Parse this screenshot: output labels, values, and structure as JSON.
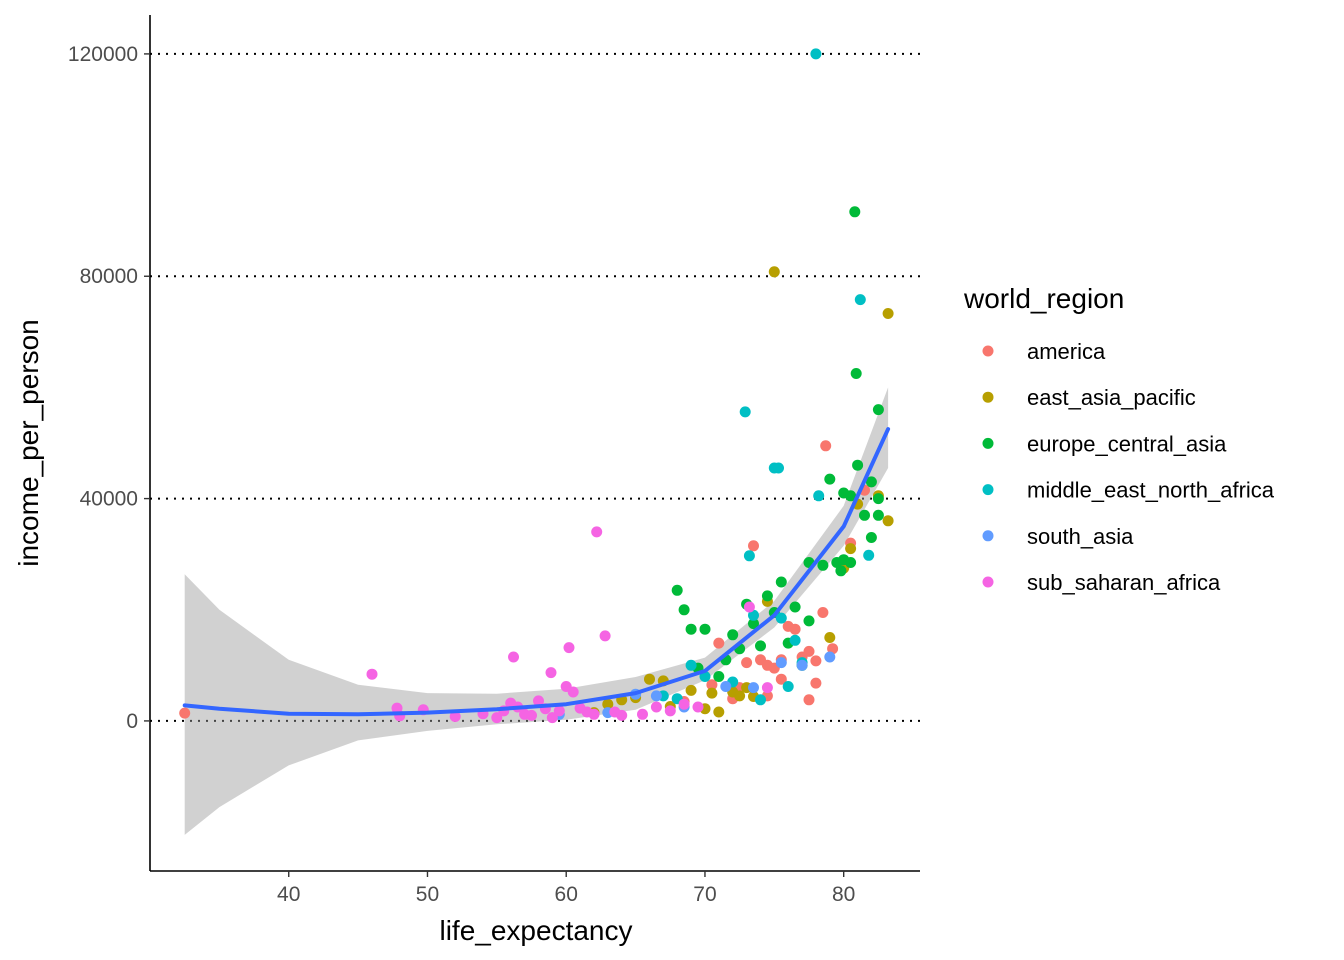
{
  "chart_data": {
    "type": "scatter",
    "title": "",
    "xlabel": "life_expectancy",
    "ylabel": "income_per_person",
    "xlim": [
      30,
      85.5
    ],
    "ylim": [
      -27000,
      127000
    ],
    "x_ticks": [
      40,
      50,
      60,
      70,
      80
    ],
    "y_ticks": [
      0,
      40000,
      80000,
      120000
    ],
    "y_tick_labels": [
      "0",
      "40000",
      "80000",
      "120000"
    ],
    "grid": "horizontal dotted major lines",
    "legend": {
      "title": "world_region",
      "placement": "right"
    },
    "series": [
      {
        "name": "america",
        "color": "#F8766D",
        "points": [
          [
            32.5,
            1400
          ],
          [
            68.5,
            3500
          ],
          [
            70.5,
            6500
          ],
          [
            71.0,
            14000
          ],
          [
            72.0,
            4000
          ],
          [
            72.5,
            6000
          ],
          [
            73.0,
            10500
          ],
          [
            73.5,
            31500
          ],
          [
            74.0,
            11000
          ],
          [
            74.5,
            10000
          ],
          [
            74.5,
            4500
          ],
          [
            75.0,
            9500
          ],
          [
            75.5,
            7500
          ],
          [
            75.5,
            11000
          ],
          [
            76.0,
            17000
          ],
          [
            76.5,
            16500
          ],
          [
            77.0,
            11500
          ],
          [
            77.5,
            3800
          ],
          [
            77.5,
            12500
          ],
          [
            78.0,
            6800
          ],
          [
            78.0,
            10800
          ],
          [
            78.5,
            19500
          ],
          [
            78.7,
            49500
          ],
          [
            79.2,
            13000
          ],
          [
            80.5,
            32000
          ],
          [
            81.5,
            41500
          ]
        ]
      },
      {
        "name": "east_asia_pacific",
        "color": "#B79F00",
        "points": [
          [
            62.0,
            1500
          ],
          [
            63.0,
            3000
          ],
          [
            64.0,
            3800
          ],
          [
            65.0,
            4200
          ],
          [
            66.0,
            7500
          ],
          [
            67.0,
            7200
          ],
          [
            67.5,
            2600
          ],
          [
            69.0,
            5500
          ],
          [
            70.0,
            2200
          ],
          [
            70.5,
            5000
          ],
          [
            71.0,
            1600
          ],
          [
            72.0,
            5200
          ],
          [
            72.5,
            4500
          ],
          [
            73.0,
            6000
          ],
          [
            73.5,
            4400
          ],
          [
            74.5,
            21500
          ],
          [
            75.0,
            80800
          ],
          [
            79.0,
            15000
          ],
          [
            80.0,
            27500
          ],
          [
            80.5,
            31000
          ],
          [
            81.0,
            39000
          ],
          [
            82.5,
            40500
          ],
          [
            83.2,
            73300
          ],
          [
            83.2,
            36000
          ]
        ]
      },
      {
        "name": "europe_central_asia",
        "color": "#00BA38",
        "points": [
          [
            68.0,
            23500
          ],
          [
            68.5,
            20000
          ],
          [
            69.0,
            16500
          ],
          [
            69.5,
            9500
          ],
          [
            70.0,
            16500
          ],
          [
            71.0,
            8000
          ],
          [
            71.5,
            11000
          ],
          [
            72.0,
            15500
          ],
          [
            72.5,
            13000
          ],
          [
            73.0,
            21000
          ],
          [
            73.5,
            17500
          ],
          [
            74.0,
            13500
          ],
          [
            74.5,
            22500
          ],
          [
            75.0,
            19500
          ],
          [
            75.5,
            25000
          ],
          [
            76.0,
            14000
          ],
          [
            76.5,
            20500
          ],
          [
            77.0,
            10000
          ],
          [
            77.5,
            18000
          ],
          [
            77.5,
            28500
          ],
          [
            78.5,
            28000
          ],
          [
            79.0,
            43500
          ],
          [
            79.5,
            28500
          ],
          [
            80.0,
            29000
          ],
          [
            80.0,
            41000
          ],
          [
            80.5,
            40500
          ],
          [
            80.8,
            91600
          ],
          [
            80.9,
            62500
          ],
          [
            81.0,
            46000
          ],
          [
            81.5,
            37000
          ],
          [
            82.0,
            33000
          ],
          [
            82.0,
            43000
          ],
          [
            82.5,
            37000
          ],
          [
            82.5,
            40000
          ],
          [
            82.5,
            56000
          ],
          [
            80.5,
            28500
          ],
          [
            79.8,
            27000
          ]
        ]
      },
      {
        "name": "middle_east_north_africa",
        "color": "#00BFC4",
        "points": [
          [
            67.0,
            4500
          ],
          [
            68.0,
            4000
          ],
          [
            69.0,
            10000
          ],
          [
            70.0,
            8000
          ],
          [
            72.0,
            7000
          ],
          [
            72.9,
            55600
          ],
          [
            73.2,
            29700
          ],
          [
            73.5,
            19000
          ],
          [
            74.0,
            3800
          ],
          [
            75.0,
            45500
          ],
          [
            75.3,
            45500
          ],
          [
            75.5,
            18500
          ],
          [
            76.0,
            6200
          ],
          [
            76.5,
            14500
          ],
          [
            77.0,
            10500
          ],
          [
            78.0,
            120000
          ],
          [
            78.2,
            40500
          ],
          [
            81.2,
            75800
          ],
          [
            81.8,
            29800
          ]
        ]
      },
      {
        "name": "south_asia",
        "color": "#619CFF",
        "points": [
          [
            59.5,
            1200
          ],
          [
            63.0,
            1500
          ],
          [
            65.0,
            4800
          ],
          [
            66.5,
            4500
          ],
          [
            68.5,
            2500
          ],
          [
            71.5,
            6200
          ],
          [
            73.5,
            6000
          ],
          [
            75.5,
            10500
          ],
          [
            77.0,
            10000
          ],
          [
            79.0,
            11500
          ]
        ]
      },
      {
        "name": "sub_saharan_africa",
        "color": "#F564E3",
        "points": [
          [
            46.0,
            8400
          ],
          [
            47.8,
            2300
          ],
          [
            48.0,
            900
          ],
          [
            49.7,
            2000
          ],
          [
            52.0,
            800
          ],
          [
            54.0,
            1300
          ],
          [
            55.0,
            600
          ],
          [
            55.5,
            1800
          ],
          [
            56.0,
            3200
          ],
          [
            56.2,
            11500
          ],
          [
            56.5,
            2500
          ],
          [
            57.0,
            1200
          ],
          [
            57.5,
            1000
          ],
          [
            58.0,
            3600
          ],
          [
            58.5,
            2200
          ],
          [
            58.9,
            8700
          ],
          [
            59.0,
            600
          ],
          [
            59.5,
            1800
          ],
          [
            60.0,
            6200
          ],
          [
            60.2,
            13200
          ],
          [
            60.5,
            5200
          ],
          [
            61.0,
            2300
          ],
          [
            61.5,
            1600
          ],
          [
            62.0,
            1200
          ],
          [
            62.2,
            34000
          ],
          [
            62.8,
            15300
          ],
          [
            63.5,
            1600
          ],
          [
            64.0,
            1000
          ],
          [
            65.5,
            1200
          ],
          [
            66.5,
            2500
          ],
          [
            67.5,
            1800
          ],
          [
            68.5,
            3000
          ],
          [
            69.5,
            2500
          ],
          [
            73.2,
            20500
          ],
          [
            74.5,
            6000
          ]
        ]
      }
    ],
    "fit_line": {
      "label": "loess smooth with confidence band",
      "color": "#3366FF",
      "x": [
        32.5,
        35,
        40,
        45,
        50,
        55,
        60,
        65,
        70,
        75,
        80,
        83.2
      ],
      "y": [
        2800,
        2200,
        1300,
        1200,
        1500,
        2100,
        3000,
        5000,
        9000,
        19000,
        35000,
        52500
      ],
      "ci_lower": [
        -20500,
        -15500,
        -8000,
        -3500,
        -1800,
        -600,
        200,
        2000,
        7300,
        16800,
        31500,
        45500
      ],
      "ci_upper": [
        26400,
        20000,
        11000,
        6500,
        5000,
        4900,
        5800,
        7900,
        11400,
        21600,
        38700,
        60000
      ]
    }
  }
}
